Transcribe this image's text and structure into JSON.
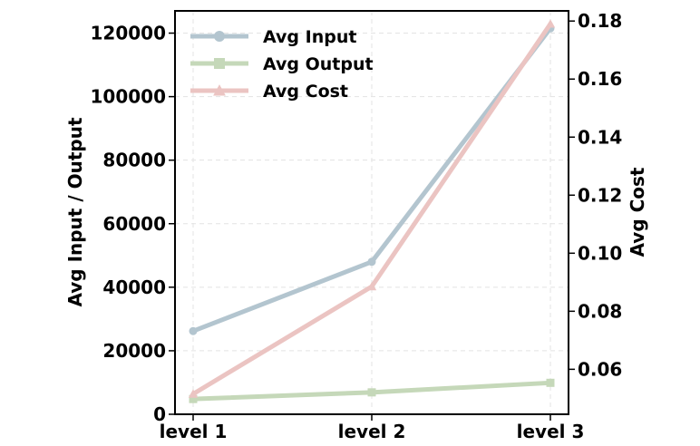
{
  "chart_data": {
    "type": "line",
    "categories": [
      "level 1",
      "level 2",
      "level 3"
    ],
    "ylabel": "Avg Input / Output",
    "y2label": "Avg Cost",
    "ylim": [
      0,
      127000
    ],
    "y2lim": [
      0.0445,
      0.1835
    ],
    "yticks": [
      0,
      20000,
      40000,
      60000,
      80000,
      100000,
      120000
    ],
    "yticks_text": [
      "0",
      "20000",
      "40000",
      "60000",
      "80000",
      "100000",
      "120000"
    ],
    "y2ticks": [
      0.06,
      0.08,
      0.1,
      0.12,
      0.14,
      0.16,
      0.18
    ],
    "y2ticks_text": [
      "0.06",
      "0.08",
      "0.10",
      "0.12",
      "0.14",
      "0.16",
      "0.18"
    ],
    "grid": true,
    "legend_position": "top-left",
    "series": [
      {
        "name": "Avg Input",
        "axis": "left",
        "values": [
          26200,
          48000,
          121500
        ],
        "color": "#b3c5cf",
        "marker": "circle"
      },
      {
        "name": "Avg Output",
        "axis": "left",
        "values": [
          4800,
          6900,
          9900
        ],
        "color": "#c5d8b9",
        "marker": "square"
      },
      {
        "name": "Avg Cost",
        "axis": "right",
        "values": [
          0.0515,
          0.0885,
          0.179
        ],
        "color": "#ebc4c2",
        "marker": "triangle"
      }
    ]
  }
}
